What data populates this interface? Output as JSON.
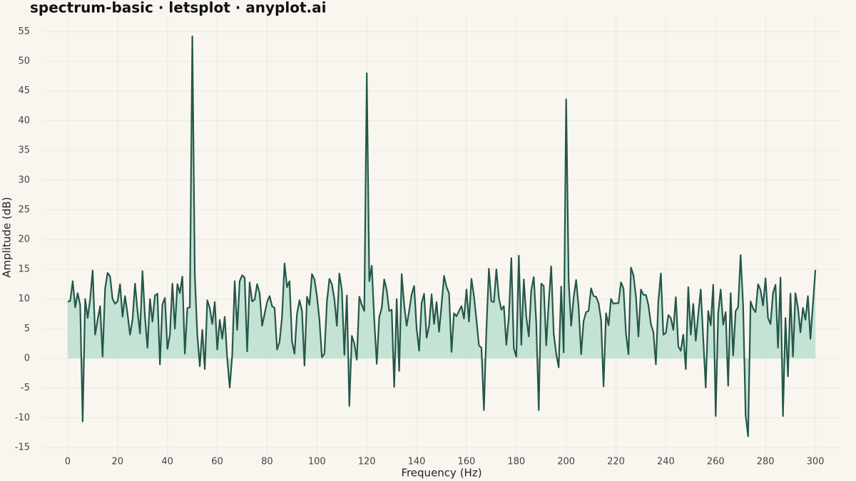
{
  "chart_data": {
    "type": "area",
    "title": "spectrum-basic · letsplot · anyplot.ai",
    "xlabel": "Frequency (Hz)",
    "ylabel": "Amplitude (dB)",
    "color": "#24574a",
    "fill_color": "#c4e3d5",
    "grid": true,
    "xlim": [
      -10,
      310
    ],
    "ylim": [
      -17,
      57.5
    ],
    "xticks": [
      0,
      20,
      40,
      60,
      80,
      100,
      120,
      140,
      160,
      180,
      200,
      220,
      240,
      260,
      280,
      300
    ],
    "yticks": [
      -15,
      -10,
      -5,
      0,
      5,
      10,
      15,
      20,
      25,
      30,
      35,
      40,
      45,
      50,
      55
    ],
    "x": [
      0,
      1,
      2,
      3,
      4,
      5,
      6,
      7,
      8,
      9,
      10,
      11,
      12,
      13,
      14,
      15,
      16,
      17,
      18,
      19,
      20,
      21,
      22,
      23,
      24,
      25,
      26,
      27,
      28,
      29,
      30,
      31,
      32,
      33,
      34,
      35,
      36,
      37,
      38,
      39,
      40,
      41,
      42,
      43,
      44,
      45,
      46,
      47,
      48,
      49,
      50,
      51,
      52,
      53,
      54,
      55,
      56,
      57,
      58,
      59,
      60,
      61,
      62,
      63,
      64,
      65,
      66,
      67,
      68,
      69,
      70,
      71,
      72,
      73,
      74,
      75,
      76,
      77,
      78,
      79,
      80,
      81,
      82,
      83,
      84,
      85,
      86,
      87,
      88,
      89,
      90,
      91,
      92,
      93,
      94,
      95,
      96,
      97,
      98,
      99,
      100,
      101,
      102,
      103,
      104,
      105,
      106,
      107,
      108,
      109,
      110,
      111,
      112,
      113,
      114,
      115,
      116,
      117,
      118,
      119,
      120,
      121,
      122,
      123,
      124,
      125,
      126,
      127,
      128,
      129,
      130,
      131,
      132,
      133,
      134,
      135,
      136,
      137,
      138,
      139,
      140,
      141,
      142,
      143,
      144,
      145,
      146,
      147,
      148,
      149,
      150,
      151,
      152,
      153,
      154,
      155,
      156,
      157,
      158,
      159,
      160,
      161,
      162,
      163,
      164,
      165,
      166,
      167,
      168,
      169,
      170,
      171,
      172,
      173,
      174,
      175,
      176,
      177,
      178,
      179,
      180,
      181,
      182,
      183,
      184,
      185,
      186,
      187,
      188,
      189,
      190,
      191,
      192,
      193,
      194,
      195,
      196,
      197,
      198,
      199,
      200,
      201,
      202,
      203,
      204,
      205,
      206,
      207,
      208,
      209,
      210,
      211,
      212,
      213,
      214,
      215,
      216,
      217,
      218,
      219,
      220,
      221,
      222,
      223,
      224,
      225,
      226,
      227,
      228,
      229,
      230,
      231,
      232,
      233,
      234,
      235,
      236,
      237,
      238,
      239,
      240,
      241,
      242,
      243,
      244,
      245,
      246,
      247,
      248,
      249,
      250,
      251,
      252,
      253,
      254,
      255,
      256,
      257,
      258,
      259,
      260,
      261,
      262,
      263,
      264,
      265,
      266,
      267,
      268,
      269,
      270,
      271,
      272,
      273,
      274,
      275,
      276,
      277,
      278,
      279,
      280,
      281,
      282,
      283,
      284,
      285,
      286,
      287,
      288,
      289,
      290,
      291,
      292,
      293,
      294,
      295,
      296,
      297,
      298,
      299,
      300
    ],
    "values": [
      9.5,
      9.7,
      13,
      8.6,
      11,
      9,
      -10.6,
      10,
      6.8,
      10,
      14.8,
      4,
      6.5,
      8.8,
      0.3,
      11.8,
      14.4,
      13.8,
      10,
      9.2,
      9.6,
      12.5,
      7,
      10.5,
      7.5,
      4,
      6.5,
      12.6,
      8,
      4.2,
      14.7,
      7,
      1.8,
      10,
      6.2,
      10.6,
      10.9,
      -1,
      9.1,
      10.2,
      1.6,
      4,
      12.6,
      5,
      12.5,
      11,
      13.8,
      0.8,
      8.5,
      8.6,
      54.2,
      14,
      4,
      -1.3,
      4.8,
      -1.8,
      9.8,
      8.5,
      5.8,
      9.5,
      1.5,
      6.5,
      3.3,
      7,
      0,
      -4.9,
      0.5,
      13,
      4.8,
      13,
      14,
      13.6,
      1.2,
      12.8,
      9.6,
      9.9,
      12.5,
      11,
      5.5,
      7.5,
      9.5,
      10.5,
      8.8,
      8.5,
      1.5,
      2.8,
      7,
      16,
      12,
      13,
      2.8,
      0.8,
      7.5,
      9.8,
      8,
      -1.2,
      10.4,
      9,
      14.2,
      13.3,
      10.5,
      6.5,
      0.2,
      0.8,
      9.5,
      13.4,
      12.5,
      10,
      5.5,
      14.3,
      11.5,
      0.6,
      10.6,
      -8,
      3.8,
      2.5,
      -0.2,
      10.4,
      9,
      8,
      48,
      13,
      15.6,
      6.5,
      -0.9,
      7,
      8.5,
      13.3,
      11.5,
      8,
      8.2,
      -4.8,
      10,
      -2.1,
      14.2,
      9,
      5.5,
      8,
      10.8,
      12.2,
      5,
      1.3,
      9.3,
      10.9,
      3.5,
      5.5,
      10.8,
      5.8,
      9.5,
      4.5,
      9,
      13.9,
      12,
      11,
      1.1,
      7.6,
      7.1,
      8,
      8.8,
      6.7,
      11.6,
      6.2,
      13.4,
      10.5,
      6.5,
      2.2,
      1.8,
      -8.7,
      4.8,
      15.1,
      9.6,
      9.5,
      15,
      10.2,
      8.2,
      8.8,
      2.3,
      7,
      16.9,
      1.7,
      0.3,
      17.3,
      2.3,
      13.3,
      7,
      3.7,
      11.5,
      13.7,
      6,
      -8.7,
      12.6,
      12.2,
      2.2,
      9.4,
      15.5,
      4.2,
      0.8,
      -1.5,
      12.1,
      1,
      43.6,
      13,
      5.5,
      10.2,
      13.2,
      8.6,
      0.7,
      6.3,
      7.8,
      8,
      11.8,
      10.5,
      10.4,
      9.3,
      6.5,
      -4.7,
      7.6,
      5.6,
      10,
      9.2,
      9.3,
      9.3,
      12.8,
      11.8,
      4.2,
      0.7,
      15.3,
      14,
      10.4,
      3.7,
      11.6,
      10.7,
      10.7,
      9,
      5.8,
      4.4,
      -1,
      9.7,
      14.3,
      4,
      4.3,
      7.3,
      6.8,
      4.8,
      10.3,
      2,
      1.3,
      4,
      -1.8,
      12,
      4,
      9.2,
      3,
      7.4,
      11.6,
      3.4,
      -4.9,
      8,
      5.6,
      12.4,
      -9.7,
      7.6,
      11.6,
      5.7,
      7.8,
      -4.6,
      11,
      0.5,
      8,
      8.6,
      17.4,
      9,
      -9.5,
      -13.1,
      9.6,
      8.4,
      7.8,
      12.5,
      11.5,
      8.9,
      13.5,
      6.8,
      5.8,
      11,
      12.4,
      1.8,
      13.6,
      -9.7,
      6.8,
      -3,
      10.9,
      0.3,
      11,
      8.5,
      4.4,
      8.5,
      6.5,
      10.5,
      3.3,
      9,
      14.9
    ]
  }
}
